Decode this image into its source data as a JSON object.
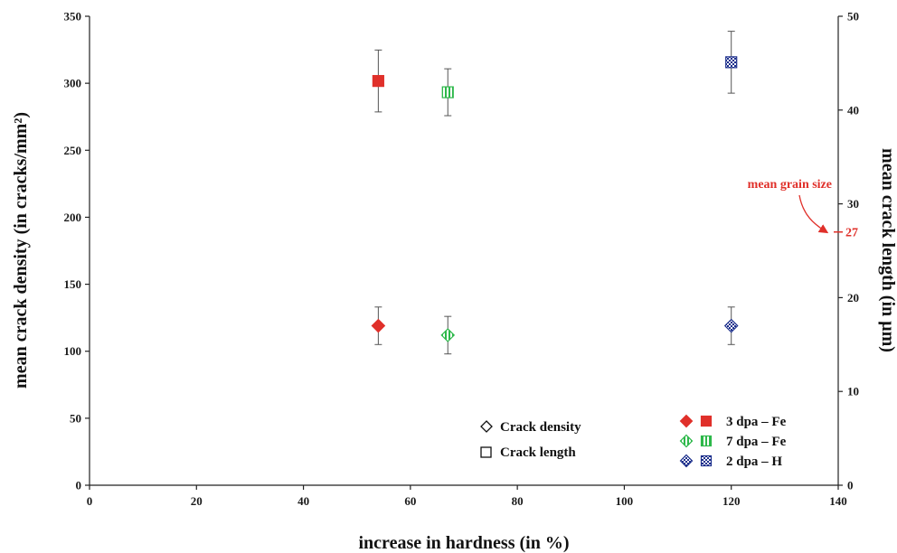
{
  "chart_data": {
    "type": "scatter",
    "xlabel": "increase in hardness (in %)",
    "ylabel_left": "mean crack density (in cracks/mm²)",
    "ylabel_right": "mean crack length (in µm)",
    "xlim": [
      0,
      140
    ],
    "ylim_left": [
      0,
      350
    ],
    "ylim_right": [
      0,
      50
    ],
    "xticks": [
      0,
      20,
      40,
      60,
      80,
      100,
      120,
      140
    ],
    "yticks_left": [
      0,
      50,
      100,
      150,
      200,
      250,
      300,
      350
    ],
    "yticks_right": [
      0,
      10,
      20,
      30,
      40,
      50
    ],
    "grid": false,
    "series": [
      {
        "name": "3 dpa – Fe",
        "color": "#e0302a",
        "pattern": "solid",
        "density": {
          "x": 54,
          "y": 119,
          "err": 14
        },
        "length": {
          "x": 54,
          "y": 43.1,
          "err": 3.3
        }
      },
      {
        "name": "7 dpa – Fe",
        "color": "#2db84a",
        "pattern": "vstripe",
        "density": {
          "x": 67,
          "y": 112,
          "err": 14
        },
        "length": {
          "x": 67,
          "y": 41.9,
          "err": 2.5
        }
      },
      {
        "name": "2 dpa – H",
        "color": "#1c2f8c",
        "pattern": "checker",
        "density": {
          "x": 120,
          "y": 119,
          "err": 14
        },
        "length": {
          "x": 120,
          "y": 45.1,
          "err": 3.3
        }
      }
    ],
    "annotation": {
      "text": "mean grain size",
      "value_label": "27",
      "value": 27
    },
    "legend_markers": {
      "density_label": "Crack density",
      "length_label": "Crack length"
    }
  }
}
